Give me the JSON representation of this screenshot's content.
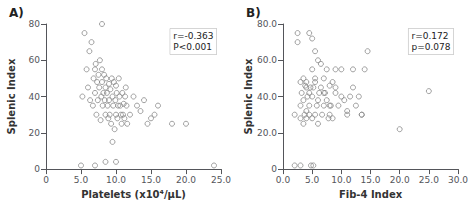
{
  "chart_data": [
    {
      "type": "scatter",
      "title": "A)",
      "xlabel": "Platelets (x10⁴/μL)",
      "ylabel": "Splenic Index",
      "annotation": "r=-0.363\nP<0.001",
      "xlim": [
        0,
        25
      ],
      "ylim": [
        0,
        80
      ],
      "xticks": [
        0,
        {
          "value": 5.0,
          "label": "5.0"
        },
        {
          "value": 10.0,
          "label": "10.0"
        },
        {
          "value": 15.0,
          "label": "15.0"
        },
        {
          "value": 20.0,
          "label": "20.0"
        },
        {
          "value": 25.0,
          "label": "25.0"
        }
      ],
      "yticks": [
        0,
        20,
        40,
        60,
        80
      ],
      "grid": false,
      "color": "#888888",
      "marker": "hollow_circle",
      "x": [
        5.2,
        5.5,
        5.8,
        6.0,
        6.2,
        6.3,
        6.5,
        6.7,
        6.8,
        7.0,
        7.0,
        7.1,
        7.2,
        7.3,
        7.4,
        7.5,
        7.6,
        7.7,
        7.8,
        7.9,
        8.0,
        8.0,
        8.1,
        8.2,
        8.3,
        8.4,
        8.5,
        8.5,
        8.6,
        8.7,
        8.8,
        8.9,
        9.0,
        9.0,
        9.1,
        9.2,
        9.3,
        9.4,
        9.5,
        9.6,
        9.7,
        9.8,
        9.9,
        10.0,
        10.0,
        10.1,
        10.2,
        10.3,
        10.4,
        10.5,
        10.6,
        10.7,
        10.8,
        10.9,
        11.0,
        11.1,
        11.2,
        11.3,
        11.4,
        11.5,
        11.6,
        12.0,
        12.5,
        13.0,
        13.5,
        14.0,
        14.5,
        15.0,
        15.5,
        16.0,
        18.0,
        20.0,
        24.0,
        5.0,
        7.0,
        8.5,
        10.0,
        8.0,
        9.5
      ],
      "values": [
        40,
        75,
        55,
        45,
        65,
        38,
        70,
        35,
        50,
        55,
        42,
        58,
        30,
        48,
        38,
        52,
        45,
        60,
        27,
        40,
        55,
        48,
        35,
        42,
        52,
        38,
        45,
        30,
        50,
        42,
        35,
        28,
        47,
        38,
        30,
        44,
        25,
        50,
        40,
        35,
        48,
        22,
        38,
        30,
        46,
        42,
        28,
        35,
        50,
        40,
        35,
        30,
        25,
        42,
        30,
        36,
        28,
        40,
        45,
        35,
        25,
        30,
        40,
        35,
        32,
        38,
        25,
        28,
        30,
        35,
        25,
        25,
        2,
        2,
        2,
        4,
        4,
        80,
        15
      ]
    },
    {
      "type": "scatter",
      "title": "B)",
      "xlabel": "Fib-4 Index",
      "ylabel": "Splenic Index",
      "annotation": "r=0.172\np=0.078",
      "xlim": [
        0,
        30
      ],
      "ylim": [
        0,
        80
      ],
      "xticks": [
        {
          "value": 0,
          "label": "0.0"
        },
        {
          "value": 5.0,
          "label": "5.0"
        },
        {
          "value": 10.0,
          "label": "10.0"
        },
        {
          "value": 15.0,
          "label": "15.0"
        },
        {
          "value": 20.0,
          "label": "20.0"
        },
        {
          "value": 25.0,
          "label": "25.0"
        },
        {
          "value": 30.0,
          "label": "30.0"
        }
      ],
      "yticks": [
        0,
        {
          "value": 20,
          "label": "20.0"
        },
        {
          "value": 40,
          "label": "40.0"
        },
        {
          "value": 60,
          "label": "60.0"
        },
        {
          "value": 80,
          "label": "80.0"
        }
      ],
      "grid": false,
      "color": "#888888",
      "marker": "hollow_circle",
      "x": [
        2.0,
        2.5,
        3.0,
        3.0,
        3.2,
        3.5,
        3.5,
        3.7,
        3.8,
        4.0,
        4.0,
        4.0,
        4.2,
        4.5,
        4.5,
        4.7,
        5.0,
        5.0,
        5.0,
        5.2,
        5.5,
        5.5,
        5.8,
        6.0,
        6.0,
        6.2,
        6.5,
        6.7,
        7.0,
        7.0,
        7.2,
        7.5,
        7.8,
        8.0,
        8.0,
        8.2,
        8.5,
        8.5,
        9.0,
        9.0,
        9.5,
        10.0,
        10.5,
        11.0,
        11.5,
        12.0,
        12.5,
        13.0,
        13.5,
        14.0,
        14.5,
        20.0,
        25.0,
        2.5,
        3.5,
        4.5,
        5.5,
        3.0,
        4.0,
        5.0,
        6.0,
        4.5,
        5.5,
        6.5,
        7.0,
        7.5,
        8.0,
        9.0,
        10.0,
        11.0,
        12.0,
        13.5,
        2.0,
        3.0,
        4.8,
        5.2
      ],
      "values": [
        30,
        75,
        35,
        28,
        42,
        25,
        38,
        30,
        46,
        32,
        48,
        28,
        40,
        35,
        30,
        45,
        28,
        40,
        55,
        45,
        30,
        48,
        35,
        38,
        25,
        42,
        45,
        30,
        35,
        50,
        42,
        38,
        28,
        46,
        30,
        35,
        48,
        28,
        42,
        55,
        35,
        55,
        38,
        30,
        40,
        55,
        35,
        40,
        30,
        55,
        65,
        22,
        43,
        70,
        50,
        42,
        65,
        48,
        45,
        72,
        60,
        75,
        50,
        58,
        42,
        55,
        35,
        45,
        40,
        32,
        45,
        30,
        2,
        2,
        2,
        2
      ]
    }
  ]
}
